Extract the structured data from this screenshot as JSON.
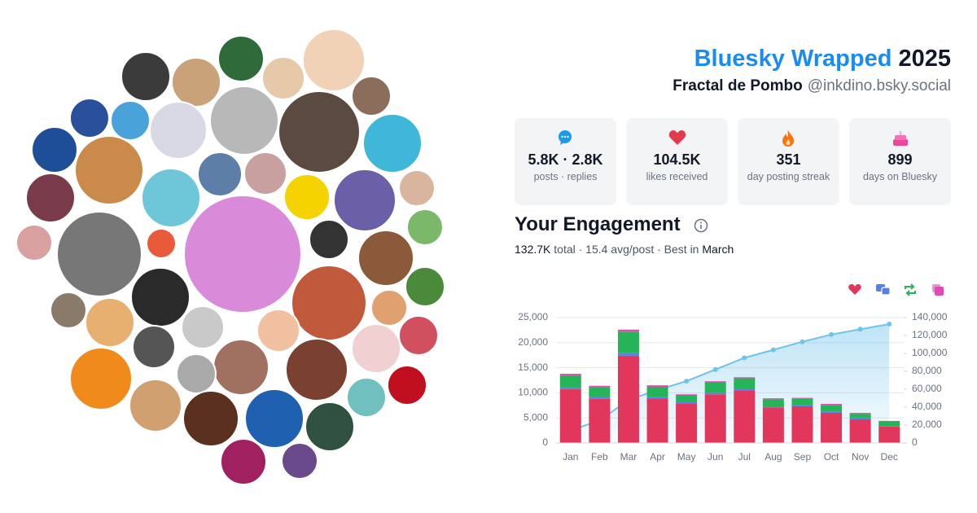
{
  "header": {
    "title": "Bluesky Wrapped",
    "year": "2025",
    "name": "Fractal de Pombo",
    "handle": "@inkdino.bsky.social"
  },
  "stats": [
    {
      "value": "5.8K · 2.8K",
      "label": "posts · replies"
    },
    {
      "value": "104.5K",
      "label": "likes received"
    },
    {
      "value": "351",
      "label": "day posting streak"
    },
    {
      "value": "899",
      "label": "days on Bluesky"
    }
  ],
  "engagement": {
    "title": "Your Engagement",
    "total": "132.7K",
    "middle": " total · 15.4 avg/post · Best in ",
    "best": "March"
  },
  "chart_data": {
    "type": "bar",
    "stacked": true,
    "categories": [
      "Jan",
      "Feb",
      "Mar",
      "Apr",
      "May",
      "Jun",
      "Jul",
      "Aug",
      "Sep",
      "Oct",
      "Nov",
      "Dec"
    ],
    "series": [
      {
        "color": "#e2375c",
        "values": [
          10700,
          8800,
          17400,
          8900,
          7900,
          9700,
          10500,
          7100,
          7300,
          6000,
          4700,
          3300
        ]
      },
      {
        "color": "#5b7fe0",
        "values": [
          300,
          300,
          500,
          300,
          300,
          300,
          300,
          200,
          200,
          200,
          200,
          100
        ]
      },
      {
        "color": "#25b457",
        "values": [
          2500,
          2000,
          4300,
          2000,
          1300,
          2100,
          2100,
          1400,
          1300,
          1400,
          900,
          900
        ]
      },
      {
        "color": "#e04bb3",
        "values": [
          300,
          300,
          400,
          300,
          200,
          200,
          200,
          200,
          200,
          200,
          200,
          100
        ]
      },
      {
        "type": "line",
        "axis": "y2",
        "color": "#6fc2ea",
        "values": [
          14000,
          25000,
          48000,
          59000,
          69000,
          82000,
          95000,
          104000,
          113000,
          121000,
          127000,
          132700
        ]
      }
    ],
    "ylim": [
      0,
      25000
    ],
    "yticks": [
      0,
      {
        "value": 5000,
        "label": "5,000"
      },
      {
        "value": 10000,
        "label": "10,000"
      },
      {
        "value": 15000,
        "label": "15,000"
      },
      {
        "value": 20000,
        "label": "20,000"
      },
      {
        "value": 25000,
        "label": "25,000"
      }
    ],
    "y2lim": [
      0,
      140000
    ],
    "y2ticks": [
      0,
      {
        "value": 20000,
        "label": "20,000"
      },
      {
        "value": 40000,
        "label": "40,000"
      },
      {
        "value": 60000,
        "label": "60,000"
      },
      {
        "value": 80000,
        "label": "80,000"
      },
      {
        "value": 100000,
        "label": "100,000"
      },
      {
        "value": 120000,
        "label": "120,000"
      },
      {
        "value": 140000,
        "label": "140,000"
      }
    ],
    "grid": true
  }
}
